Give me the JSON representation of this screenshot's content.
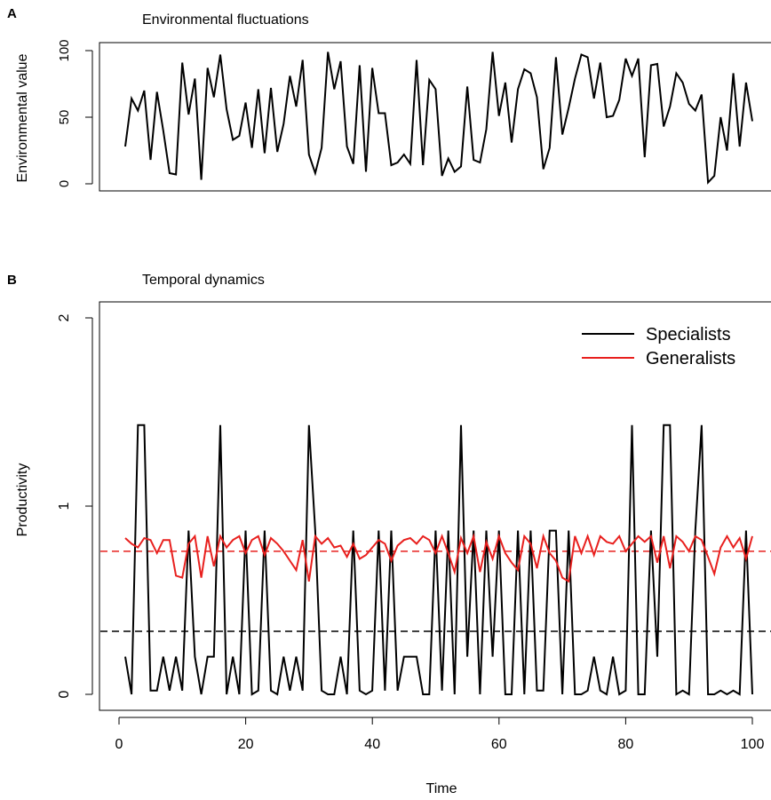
{
  "chart_data": [
    {
      "panel_label": "A",
      "type": "line",
      "title": "Environmental fluctuations",
      "xlabel": "",
      "ylabel": "Environmental value",
      "xlim": [
        1,
        100
      ],
      "ylim": [
        0,
        100
      ],
      "yticks": [
        0,
        50,
        100
      ],
      "x_start": 1,
      "series": [
        {
          "color": "#000000",
          "values": [
            28,
            64,
            55,
            70,
            18,
            69,
            40,
            8,
            7,
            91,
            52,
            79,
            3,
            87,
            65,
            97,
            56,
            33,
            36,
            61,
            27,
            71,
            23,
            72,
            24,
            45,
            81,
            58,
            93,
            22,
            8,
            27,
            99,
            71,
            92,
            28,
            15,
            89,
            9,
            87,
            53,
            53,
            14,
            16,
            22,
            15,
            93,
            14,
            78,
            71,
            6,
            19,
            9,
            13,
            73,
            18,
            16,
            41,
            99,
            51,
            76,
            31,
            71,
            86,
            83,
            65,
            11,
            27,
            95,
            37,
            57,
            79,
            97,
            95,
            64,
            91,
            50,
            51,
            63,
            94,
            81,
            94,
            20,
            89,
            90,
            43,
            58,
            83,
            76,
            60,
            55,
            67,
            1,
            6,
            50,
            25,
            83,
            28,
            76,
            47
          ]
        }
      ]
    },
    {
      "panel_label": "B",
      "type": "line",
      "title": "Temporal dynamics",
      "xlabel": "Time",
      "ylabel": "Productivity",
      "xlim": [
        1,
        100
      ],
      "ylim": [
        0,
        2
      ],
      "xticks": [
        0,
        20,
        40,
        60,
        80,
        100
      ],
      "yticks": [
        0,
        1,
        2
      ],
      "x_start": 1,
      "legend_position": "top-right",
      "series": [
        {
          "name": "Specialists",
          "color": "#000000",
          "values": [
            0.2,
            0.0,
            1.43,
            1.43,
            0.02,
            0.02,
            0.2,
            0.02,
            0.2,
            0.02,
            0.87,
            0.2,
            0.0,
            0.2,
            0.2,
            1.43,
            0.0,
            0.2,
            0.0,
            0.87,
            0.0,
            0.02,
            0.87,
            0.02,
            0.0,
            0.2,
            0.02,
            0.2,
            0.02,
            1.43,
            0.87,
            0.02,
            0.0,
            0.0,
            0.2,
            0.0,
            0.87,
            0.02,
            0.0,
            0.02,
            0.87,
            0.02,
            0.87,
            0.02,
            0.2,
            0.2,
            0.2,
            0.0,
            0.0,
            0.87,
            0.02,
            0.87,
            0.0,
            1.43,
            0.2,
            0.87,
            0.0,
            0.87,
            0.2,
            0.87,
            0.0,
            0.0,
            0.87,
            0.0,
            0.87,
            0.02,
            0.02,
            0.87,
            0.87,
            0.0,
            0.87,
            0.0,
            0.0,
            0.02,
            0.2,
            0.02,
            0.0,
            0.2,
            0.0,
            0.02,
            1.43,
            0.0,
            0.0,
            0.87,
            0.2,
            1.43,
            1.43,
            0.0,
            0.02,
            0.0,
            0.87,
            1.43,
            0.0,
            0.0,
            0.02,
            0.0,
            0.02,
            0.0,
            0.87,
            0.0
          ]
        },
        {
          "name": "Generalists",
          "color": "#e8201e",
          "values": [
            0.83,
            0.8,
            0.78,
            0.83,
            0.82,
            0.75,
            0.82,
            0.82,
            0.63,
            0.62,
            0.8,
            0.84,
            0.62,
            0.84,
            0.68,
            0.84,
            0.78,
            0.82,
            0.84,
            0.75,
            0.82,
            0.84,
            0.74,
            0.83,
            0.8,
            0.76,
            0.71,
            0.66,
            0.82,
            0.6,
            0.84,
            0.8,
            0.83,
            0.78,
            0.79,
            0.73,
            0.8,
            0.72,
            0.74,
            0.78,
            0.82,
            0.8,
            0.71,
            0.79,
            0.82,
            0.83,
            0.8,
            0.84,
            0.82,
            0.75,
            0.84,
            0.75,
            0.65,
            0.83,
            0.75,
            0.84,
            0.65,
            0.81,
            0.72,
            0.84,
            0.75,
            0.7,
            0.66,
            0.84,
            0.8,
            0.67,
            0.84,
            0.75,
            0.71,
            0.62,
            0.6,
            0.84,
            0.75,
            0.84,
            0.74,
            0.84,
            0.81,
            0.8,
            0.84,
            0.76,
            0.8,
            0.84,
            0.81,
            0.84,
            0.7,
            0.84,
            0.67,
            0.84,
            0.81,
            0.76,
            0.84,
            0.82,
            0.73,
            0.64,
            0.78,
            0.84,
            0.78,
            0.83,
            0.72,
            0.84
          ]
        }
      ],
      "reference_lines": [
        {
          "value": 0.76,
          "color": "#e8201e",
          "style": "dashed"
        },
        {
          "value": 0.335,
          "color": "#000000",
          "style": "dashed"
        }
      ]
    }
  ]
}
